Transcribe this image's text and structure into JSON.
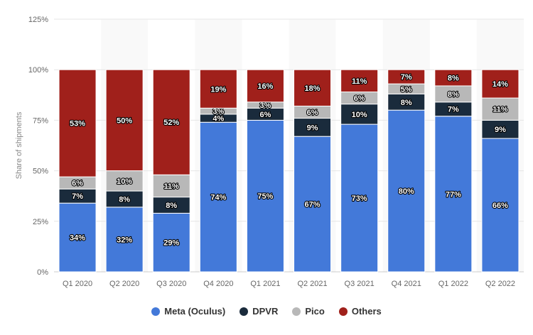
{
  "chart_data": {
    "type": "bar",
    "stacked": true,
    "ylabel": "Share of shipments",
    "ylim": [
      0,
      125
    ],
    "yticks": [
      0,
      25,
      50,
      75,
      100,
      125
    ],
    "ytick_labels": [
      "0%",
      "25%",
      "50%",
      "75%",
      "100%",
      "125%"
    ],
    "grid": true,
    "legend_position": "bottom",
    "categories": [
      "Q1 2020",
      "Q2 2020",
      "Q3 2020",
      "Q4 2020",
      "Q1 2021",
      "Q2 2021",
      "Q3 2021",
      "Q4 2021",
      "Q1 2022",
      "Q2 2022"
    ],
    "series": [
      {
        "name": "Meta (Oculus)",
        "color": "#4379d9",
        "values": [
          34,
          32,
          29,
          74,
          75,
          67,
          73,
          80,
          77,
          66
        ],
        "labels": [
          "34%",
          "32%",
          "29%",
          "74%",
          "75%",
          "67%",
          "73%",
          "80%",
          "77%",
          "66%"
        ]
      },
      {
        "name": "DPVR",
        "color": "#1a2b3c",
        "values": [
          7,
          8,
          8,
          4,
          6,
          9,
          10,
          8,
          7,
          9
        ],
        "labels": [
          "7%",
          "8%",
          "8%",
          "4%",
          "6%",
          "9%",
          "10%",
          "8%",
          "7%",
          "9%"
        ]
      },
      {
        "name": "Pico",
        "color": "#b8b8b8",
        "values": [
          6,
          10,
          11,
          3,
          3,
          6,
          6,
          5,
          8,
          11
        ],
        "labels": [
          "6%",
          "10%",
          "11%",
          "3%",
          "3%",
          "6%",
          "6%",
          "5%",
          "8%",
          "11%"
        ]
      },
      {
        "name": "Others",
        "color": "#a0201b",
        "values": [
          53,
          50,
          52,
          19,
          16,
          18,
          11,
          7,
          8,
          14
        ],
        "labels": [
          "53%",
          "50%",
          "52%",
          "19%",
          "16%",
          "18%",
          "11%",
          "7%",
          "8%",
          "14%"
        ]
      }
    ]
  }
}
